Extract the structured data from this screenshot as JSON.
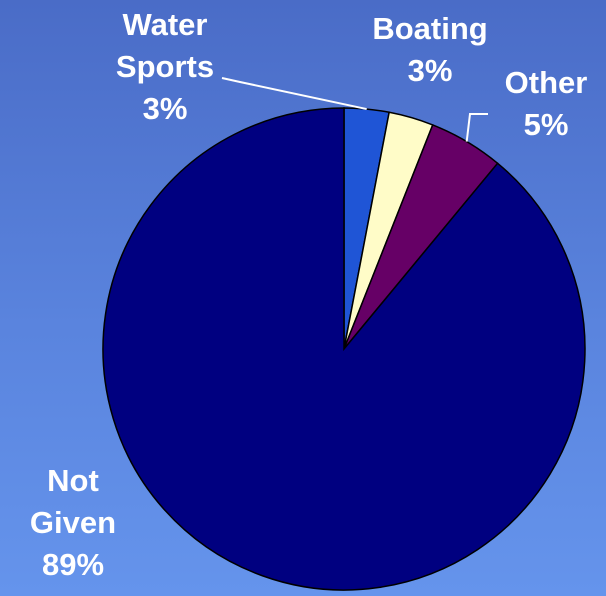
{
  "chart_data": {
    "type": "pie",
    "slices": [
      {
        "name": "Water Sports",
        "value": 3,
        "color": "#1f55d6"
      },
      {
        "name": "Boating",
        "value": 3,
        "color": "#fffcc8"
      },
      {
        "name": "Other",
        "value": 5,
        "color": "#660066"
      },
      {
        "name": "Not Given",
        "value": 89,
        "color": "#000080"
      }
    ],
    "labels": {
      "water": {
        "line1": "Water",
        "line2": "Sports",
        "pct": "3%"
      },
      "boating": {
        "line1": "Boating",
        "pct": "3%"
      },
      "other": {
        "line1": "Other",
        "pct": "5%"
      },
      "notgiven": {
        "line1": "Not",
        "line2": "Given",
        "pct": "89%"
      }
    },
    "edge_color": "#000000",
    "leader_color": "#ffffff"
  }
}
